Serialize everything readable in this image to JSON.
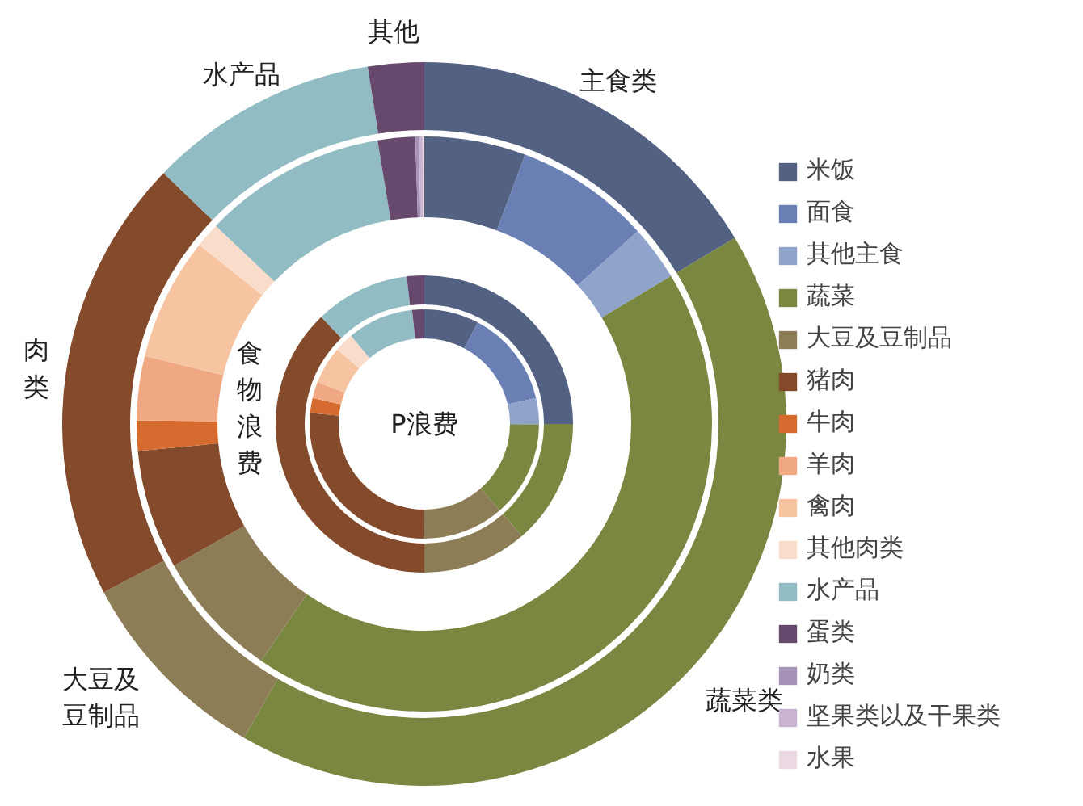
{
  "chart_data": {
    "type": "donut",
    "legend": "right",
    "categories": [
      "米饭",
      "面食",
      "其他主食",
      "蔬菜",
      "大豆及豆制品",
      "猪肉",
      "牛肉",
      "羊肉",
      "禽肉",
      "其他肉类",
      "水产品",
      "蛋类",
      "奶类",
      "坚果类以及干果类",
      "水果"
    ],
    "colors": [
      "#536283",
      "#6a80b5",
      "#8fa3cb",
      "#7a8740",
      "#8d7d56",
      "#834a2b",
      "#d66b2f",
      "#f0a882",
      "#f6c4a1",
      "#fadccb",
      "#91bcc3",
      "#66496c",
      "#a692b6",
      "#c8b3d3",
      "#ead8e3"
    ],
    "series": [
      {
        "values": [
          16.4,
          null,
          null,
          41.9,
          9.0,
          19.9,
          null,
          null,
          null,
          null,
          10.3,
          2.5,
          null,
          null,
          null
        ]
      },
      {
        "values": [
          5.7,
          7.6,
          3.1,
          43.2,
          7.2,
          6.7,
          1.7,
          3.6,
          6.9,
          1.4,
          10.3,
          2.1,
          0.2,
          0.2,
          0.1
        ]
      },
      {
        "values": [
          25.0,
          null,
          null,
          13.6,
          11.4,
          37.8,
          null,
          null,
          null,
          null,
          10.3,
          1.9,
          null,
          null,
          null
        ]
      },
      {
        "values": [
          7.7,
          13.6,
          3.7,
          13.5,
          11.5,
          26.4,
          2.1,
          2.3,
          5.3,
          2.7,
          9.3,
          1.6,
          0.1,
          null,
          null
        ]
      }
    ],
    "annotations": [
      "主食类",
      "蔬菜类",
      "大豆及豆制品",
      "肉类",
      "水产品",
      "其他",
      "食物浪费",
      "P浪费"
    ]
  }
}
